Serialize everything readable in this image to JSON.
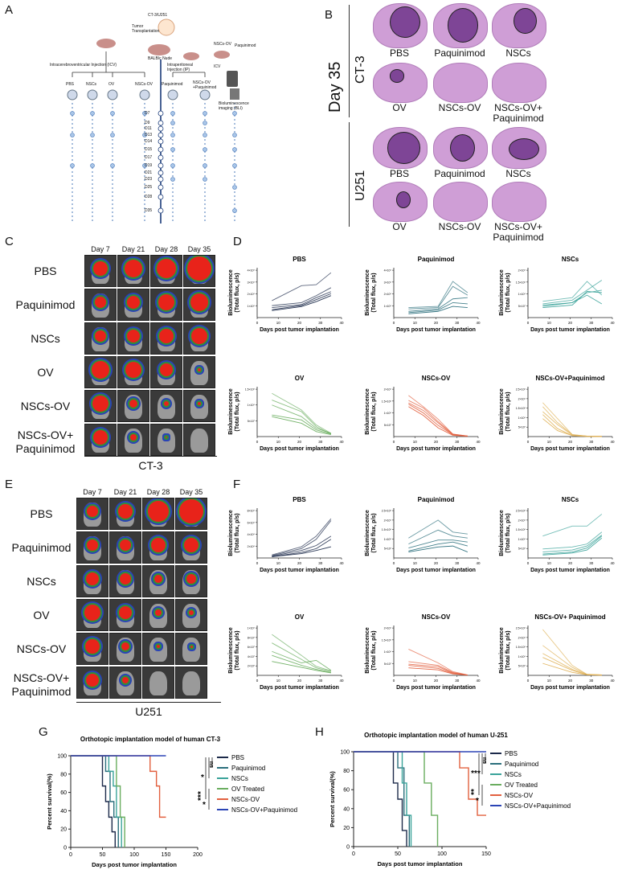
{
  "panels": {
    "A": "A",
    "B": "B",
    "C": "C",
    "D": "D",
    "E": "E",
    "F": "F",
    "G": "G",
    "H": "H"
  },
  "panel_a": {
    "top_label": "CT-3/U251",
    "tumor_transplant": "Tumor Transplantation",
    "balbc": "BALB/c Nude",
    "icv_label": "Intracerebroventricular Injection (ICV)",
    "ip_label": "Intraperitoneal Injection (IP)",
    "nscs_ov_label": "NSCs-OV",
    "paq_label": "Paquinimod",
    "icv": "ICV",
    "ip": "IP",
    "groups": [
      "PBS",
      "NSCs",
      "OV",
      "NSCs-OV",
      "Paquinimod",
      "NSCs-OV +Paquinimod",
      "Bioluminescence imaging (BLI)"
    ],
    "days": [
      "D7",
      "D9",
      "D11",
      "D13",
      "D14",
      "D15",
      "D17",
      "D19",
      "D21",
      "D23",
      "D25",
      "D28",
      "D35"
    ]
  },
  "panel_b": {
    "day_label": "Day 35",
    "ct3_label": "CT-3",
    "u251_label": "U251",
    "ct3_row1": [
      "PBS",
      "Paquinimod",
      "NSCs"
    ],
    "ct3_row2": [
      "OV",
      "NSCs-OV",
      "NSCs-OV+\nPaquinimod"
    ],
    "u251_row1": [
      "PBS",
      "Paquinimod",
      "NSCs"
    ],
    "u251_row2": [
      "OV",
      "NSCs-OV",
      "NSCs-OV+\nPaquinimod"
    ]
  },
  "panel_c": {
    "days": [
      "Day 7",
      "Day 21",
      "Day 28",
      "Day 35"
    ],
    "rows": [
      "PBS",
      "Paquinimod",
      "NSCs",
      "OV",
      "NSCs-OV",
      "NSCs-OV+\nPaquinimod"
    ],
    "caption": "CT-3"
  },
  "panel_e": {
    "days": [
      "Day 7",
      "Day 21",
      "Day 28",
      "Day 35"
    ],
    "rows": [
      "PBS",
      "Paquinimod",
      "NSCs",
      "OV",
      "NSCs-OV",
      "NSCs-OV+\nPaquinimod"
    ],
    "caption": "U251"
  },
  "colors": {
    "PBS": "#1c2a4a",
    "Paquinimod": "#2b6f7c",
    "NSCs": "#3aa39a",
    "OV": "#6aad5f",
    "NSCs-OV": "#e2603f",
    "NSCs-OV+Paquinimod": "#e0b35a",
    "combo_survival": "#2b44b5"
  },
  "chart_data": [
    {
      "type": "line",
      "panel": "D",
      "title": "PBS",
      "xlabel": "Days post tumor implantation",
      "ylabel": "Bioluminescence (Total flux, p/s)",
      "x": [
        7,
        21,
        28,
        35
      ],
      "xlim": [
        0,
        40
      ],
      "ylim": [
        0,
        5
      ],
      "yticks": [
        "1×10⁸",
        "2×10⁸",
        "3×10⁸",
        "4×10⁸"
      ],
      "series": [
        {
          "values": [
            1.7,
            3.2,
            3.3,
            4.5
          ]
        },
        {
          "values": [
            1.2,
            1.5,
            2.2,
            3.0
          ]
        },
        {
          "values": [
            1.0,
            1.3,
            2.0,
            2.6
          ]
        },
        {
          "values": [
            0.8,
            1.2,
            1.8,
            2.4
          ]
        },
        {
          "values": [
            0.7,
            1.1,
            1.6,
            2.2
          ]
        }
      ]
    },
    {
      "type": "line",
      "panel": "D",
      "title": "Paquinimod",
      "xlabel": "Days post tumor implantation",
      "ylabel": "Bioluminescence (Total flux, p/s)",
      "x": [
        7,
        21,
        28,
        35
      ],
      "xlim": [
        0,
        40
      ],
      "ylim": [
        0,
        4
      ],
      "yticks": [
        "1×10⁸",
        "2×10⁸",
        "3×10⁸",
        "4×10⁸"
      ],
      "series": [
        {
          "values": [
            0.8,
            0.9,
            2.9,
            2.0
          ]
        },
        {
          "values": [
            0.7,
            0.8,
            2.5,
            1.8
          ]
        },
        {
          "values": [
            0.5,
            0.7,
            1.5,
            1.6
          ]
        },
        {
          "values": [
            0.4,
            0.6,
            1.2,
            1.1
          ]
        },
        {
          "values": [
            0.3,
            0.5,
            0.9,
            0.8
          ]
        }
      ]
    },
    {
      "type": "line",
      "panel": "D",
      "title": "NSCs",
      "xlabel": "Days post tumor implantation",
      "ylabel": "Bioluminescence (Total flux, p/s)",
      "x": [
        7,
        21,
        28,
        35
      ],
      "xlim": [
        0,
        40
      ],
      "ylim": [
        0,
        2
      ],
      "yticks": [
        "5×10⁷",
        "1×10⁸",
        "1.5×10⁸",
        "2×10⁸"
      ],
      "series": [
        {
          "values": [
            0.65,
            0.8,
            1.45,
            0.9
          ]
        },
        {
          "values": [
            0.55,
            0.7,
            1.1,
            1.5
          ]
        },
        {
          "values": [
            0.5,
            0.6,
            1.0,
            1.1
          ]
        },
        {
          "values": [
            0.45,
            0.6,
            0.9,
            0.55
          ]
        },
        {
          "values": [
            0.4,
            0.5,
            1.05,
            1.0
          ]
        }
      ]
    },
    {
      "type": "line",
      "panel": "D",
      "title": "OV",
      "xlabel": "Days post tumor implantation",
      "ylabel": "Bioluminescence (Total flux, p/s)",
      "x": [
        7,
        21,
        28,
        35
      ],
      "xlim": [
        0,
        40
      ],
      "ylim": [
        0,
        1.5
      ],
      "yticks": [
        "5×10⁷",
        "1×10⁸",
        "1.5×10⁸"
      ],
      "series": [
        {
          "values": [
            1.3,
            0.8,
            0.35,
            0.1
          ]
        },
        {
          "values": [
            1.1,
            0.75,
            0.3,
            0.08
          ]
        },
        {
          "values": [
            0.95,
            0.6,
            0.25,
            0.1
          ]
        },
        {
          "values": [
            0.65,
            0.5,
            0.2,
            0.08
          ]
        },
        {
          "values": [
            0.6,
            0.4,
            0.15,
            0.06
          ]
        }
      ]
    },
    {
      "type": "line",
      "panel": "D",
      "title": "NSCs-OV",
      "xlabel": "Days post tumor implantation",
      "ylabel": "Bioluminescence (Total flux, p/s)",
      "x": [
        7,
        14,
        21,
        28,
        35
      ],
      "xlim": [
        0,
        40
      ],
      "ylim": [
        0,
        2
      ],
      "yticks": [
        "5×10⁷",
        "1×10⁸",
        "1.5×10⁸",
        "2×10⁸"
      ],
      "series": [
        {
          "values": [
            1.65,
            1.2,
            0.7,
            0.1,
            0.02
          ]
        },
        {
          "values": [
            1.45,
            1.15,
            0.6,
            0.1,
            0.02
          ]
        },
        {
          "values": [
            1.35,
            1.05,
            0.55,
            0.08,
            0.02
          ]
        },
        {
          "values": [
            1.3,
            0.95,
            0.45,
            0.08,
            0.01
          ]
        },
        {
          "values": [
            1.2,
            0.85,
            0.35,
            0.05,
            0.01
          ]
        }
      ]
    },
    {
      "type": "line",
      "panel": "D",
      "title": "NSCs-OV+Paquinimod",
      "xlabel": "Days post tumor implantation",
      "ylabel": "Bioluminescence (Total flux, p/s)",
      "x": [
        7,
        14,
        21,
        28,
        35
      ],
      "xlim": [
        0,
        40
      ],
      "ylim": [
        0,
        2.5
      ],
      "yticks": [
        "5×10⁷",
        "1×10⁸",
        "1.5×10⁸",
        "2×10⁸",
        "2.5×10⁸"
      ],
      "series": [
        {
          "values": [
            1.7,
            0.9,
            0.1,
            0.02,
            0.01
          ]
        },
        {
          "values": [
            1.5,
            0.7,
            0.1,
            0.02,
            0.01
          ]
        },
        {
          "values": [
            1.25,
            0.6,
            0.08,
            0.02,
            0.01
          ]
        },
        {
          "values": [
            1.1,
            0.4,
            0.05,
            0.01,
            0.01
          ]
        },
        {
          "values": [
            0.9,
            0.3,
            0.05,
            0.01,
            0.01
          ]
        }
      ]
    },
    {
      "type": "line",
      "panel": "F",
      "title": "PBS",
      "xlabel": "Days post tumor implantation",
      "ylabel": "Bioluminescence (Total flux, p/s)",
      "x": [
        7,
        21,
        28,
        35
      ],
      "xlim": [
        0,
        40
      ],
      "ylim": [
        0,
        8
      ],
      "yticks": [
        "2×10⁸",
        "4×10⁸",
        "6×10⁸",
        "8×10⁸"
      ],
      "series": [
        {
          "values": [
            0.5,
            1.8,
            3.5,
            6.3
          ]
        },
        {
          "values": [
            0.4,
            1.5,
            3.0,
            6.0
          ]
        },
        {
          "values": [
            0.3,
            1.2,
            2.0,
            3.5
          ]
        },
        {
          "values": [
            0.2,
            0.9,
            1.5,
            3.0
          ]
        },
        {
          "values": [
            0.2,
            0.7,
            1.2,
            1.8
          ]
        }
      ]
    },
    {
      "type": "line",
      "panel": "F",
      "title": "Paquinimod",
      "xlabel": "Days post tumor implantation",
      "ylabel": "Bioluminescence (Total flux, p/s)",
      "x": [
        7,
        21,
        28,
        35
      ],
      "xlim": [
        0,
        40
      ],
      "ylim": [
        0,
        2.5
      ],
      "yticks": [
        "5×10⁷",
        "1×10⁸",
        "1.5×10⁸",
        "2×10⁸",
        "2.5×10⁸"
      ],
      "series": [
        {
          "values": [
            1.0,
            1.9,
            1.3,
            1.2
          ]
        },
        {
          "values": [
            0.7,
            1.4,
            1.1,
            1.0
          ]
        },
        {
          "values": [
            0.5,
            0.9,
            0.9,
            0.8
          ]
        },
        {
          "values": [
            0.35,
            0.7,
            0.8,
            0.6
          ]
        },
        {
          "values": [
            0.3,
            0.55,
            0.6,
            0.3
          ]
        }
      ]
    },
    {
      "type": "line",
      "panel": "F",
      "title": "NSCs",
      "xlabel": "Days post tumor implantation",
      "ylabel": "Bioluminescence (Total flux, p/s)",
      "x": [
        7,
        21,
        28,
        35
      ],
      "xlim": [
        0,
        40
      ],
      "ylim": [
        0,
        2.5
      ],
      "yticks": [
        "5×10⁷",
        "1×10⁸",
        "1.5×10⁸",
        "2×10⁸",
        "2.5×10⁸"
      ],
      "series": [
        {
          "values": [
            1.1,
            1.6,
            1.6,
            2.2
          ]
        },
        {
          "values": [
            0.45,
            0.55,
            0.7,
            1.3
          ]
        },
        {
          "values": [
            0.3,
            0.4,
            0.6,
            1.15
          ]
        },
        {
          "values": [
            0.2,
            0.3,
            0.5,
            1.1
          ]
        },
        {
          "values": [
            0.15,
            0.25,
            0.4,
            1.0
          ]
        }
      ]
    },
    {
      "type": "line",
      "panel": "F",
      "title": "OV",
      "xlabel": "Days post tumor implantation",
      "ylabel": "Bioluminescence (Total flux, p/s)",
      "x": [
        7,
        21,
        28,
        35
      ],
      "xlim": [
        0,
        40
      ],
      "ylim": [
        0,
        10
      ],
      "yticks": [
        "2×10⁷",
        "4×10⁷",
        "6×10⁷",
        "8×10⁷",
        "1×10⁸"
      ],
      "series": [
        {
          "values": [
            8.2,
            4.0,
            1.8,
            0.9
          ]
        },
        {
          "values": [
            6.5,
            3.2,
            1.5,
            0.8
          ]
        },
        {
          "values": [
            4.8,
            2.5,
            3.0,
            1.0
          ]
        },
        {
          "values": [
            4.0,
            2.0,
            1.2,
            0.6
          ]
        },
        {
          "values": [
            2.8,
            1.6,
            1.0,
            0.5
          ]
        }
      ]
    },
    {
      "type": "line",
      "panel": "F",
      "title": "NSCs-OV",
      "xlabel": "Days post tumor implantation",
      "ylabel": "Bioluminescence (Total flux, p/s)",
      "x": [
        7,
        21,
        28,
        35
      ],
      "xlim": [
        0,
        40
      ],
      "ylim": [
        0,
        20
      ],
      "yticks": [
        "5×10⁷",
        "1×10⁸",
        "1.5×10⁸",
        "2×10⁸"
      ],
      "series": [
        {
          "values": [
            10.5,
            5.0,
            1.5,
            0.2
          ]
        },
        {
          "values": [
            5.5,
            4.0,
            1.2,
            0.1
          ]
        },
        {
          "values": [
            4.5,
            3.5,
            1.0,
            0.1
          ]
        },
        {
          "values": [
            4.0,
            2.8,
            0.8,
            0.1
          ]
        },
        {
          "values": [
            3.0,
            2.2,
            0.6,
            0.1
          ]
        }
      ]
    },
    {
      "type": "line",
      "panel": "F",
      "title": "NSCs-OV+ Paquinimod",
      "xlabel": "Days post tumor implantation",
      "ylabel": "Bioluminescence (Total flux, p/s)",
      "x": [
        7,
        21,
        28,
        35
      ],
      "xlim": [
        0,
        40
      ],
      "ylim": [
        0,
        2.5
      ],
      "yticks": [
        "5×10⁷",
        "1×10⁸",
        "1.5×10⁸",
        "2×10⁸",
        "2.5×10⁸"
      ],
      "series": [
        {
          "values": [
            2.3,
            0.5,
            0.05,
            0.02
          ]
        },
        {
          "values": [
            1.5,
            0.4,
            0.05,
            0.02
          ]
        },
        {
          "values": [
            1.1,
            0.3,
            0.04,
            0.02
          ]
        },
        {
          "values": [
            0.9,
            0.25,
            0.03,
            0.01
          ]
        },
        {
          "values": [
            0.6,
            0.15,
            0.03,
            0.01
          ]
        }
      ]
    },
    {
      "type": "line",
      "panel": "G",
      "title": "Orthotopic implantation model of human CT-3",
      "xlabel": "Days post tumor implantation",
      "ylabel": "Percent survival(%)",
      "xlim": [
        0,
        200
      ],
      "ylim": [
        0,
        100
      ],
      "xticks": [
        "0",
        "50",
        "100",
        "150",
        "200"
      ],
      "yticks": [
        "0",
        "20",
        "40",
        "60",
        "80",
        "100"
      ],
      "legend": [
        "PBS",
        "Paquinimod",
        "NSCs",
        "OV Treated",
        "NSCs-OV",
        "NSCs-OV+Paquinimod"
      ],
      "significance": [
        "ns",
        "*",
        "***",
        "*"
      ],
      "series": [
        {
          "name": "PBS",
          "x": [
            0,
            40,
            50,
            55,
            60,
            65,
            70
          ],
          "y": [
            100,
            100,
            67,
            50,
            33,
            17,
            0
          ]
        },
        {
          "name": "Paquinimod",
          "x": [
            0,
            45,
            55,
            62,
            68,
            75
          ],
          "y": [
            100,
            100,
            83,
            50,
            33,
            0
          ]
        },
        {
          "name": "NSCs",
          "x": [
            0,
            50,
            60,
            67,
            72,
            80
          ],
          "y": [
            100,
            100,
            83,
            67,
            33,
            0
          ]
        },
        {
          "name": "OV Treated",
          "x": [
            0,
            65,
            72,
            78,
            85
          ],
          "y": [
            100,
            100,
            67,
            33,
            0
          ]
        },
        {
          "name": "NSCs-OV",
          "x": [
            0,
            120,
            125,
            135,
            140,
            150
          ],
          "y": [
            100,
            100,
            83,
            67,
            33,
            33
          ]
        },
        {
          "name": "NSCs-OV+Paquinimod",
          "x": [
            0,
            150
          ],
          "y": [
            100,
            100
          ]
        }
      ]
    },
    {
      "type": "line",
      "panel": "H",
      "title": "Orthotopic implantation model of human U-251",
      "xlabel": "Days post tumor implantation",
      "ylabel": "Percent survival(%)",
      "xlim": [
        0,
        150
      ],
      "ylim": [
        0,
        100
      ],
      "xticks": [
        "0",
        "50",
        "100",
        "150"
      ],
      "yticks": [
        "0",
        "20",
        "40",
        "60",
        "80",
        "100"
      ],
      "legend": [
        "PBS",
        "Paquinimod",
        "NSCs",
        "OV Treated",
        "NSCs-OV",
        "NSCs-OV+Paquinimod"
      ],
      "significance": [
        "ns",
        "***",
        "**",
        "*"
      ],
      "series": [
        {
          "name": "PBS",
          "x": [
            0,
            40,
            45,
            50,
            55,
            60
          ],
          "y": [
            100,
            100,
            67,
            50,
            17,
            0
          ]
        },
        {
          "name": "Paquinimod",
          "x": [
            0,
            45,
            50,
            57,
            63
          ],
          "y": [
            100,
            100,
            83,
            33,
            0
          ]
        },
        {
          "name": "NSCs",
          "x": [
            0,
            50,
            55,
            60,
            65
          ],
          "y": [
            100,
            100,
            67,
            33,
            0
          ]
        },
        {
          "name": "OV Treated",
          "x": [
            0,
            70,
            80,
            88,
            95
          ],
          "y": [
            100,
            100,
            67,
            33,
            0
          ]
        },
        {
          "name": "NSCs-OV",
          "x": [
            0,
            110,
            120,
            130,
            140,
            150
          ],
          "y": [
            100,
            100,
            83,
            50,
            33,
            33
          ]
        },
        {
          "name": "NSCs-OV+Paquinimod",
          "x": [
            0,
            150
          ],
          "y": [
            100,
            100
          ]
        }
      ]
    }
  ]
}
